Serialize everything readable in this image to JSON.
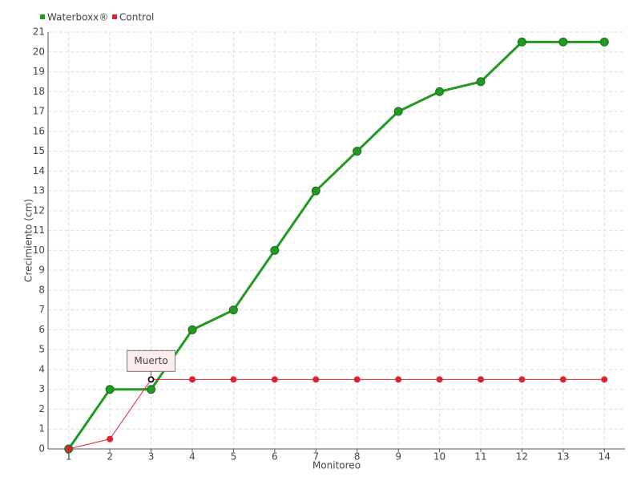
{
  "chart_data": {
    "type": "line",
    "x_label": "Monitoreo",
    "y_label": "Crecimiento (cm)",
    "x": [
      1,
      2,
      3,
      4,
      5,
      6,
      7,
      8,
      9,
      10,
      11,
      12,
      13,
      14
    ],
    "xlim": [
      0.5,
      14.5
    ],
    "xticks": [
      1,
      2,
      3,
      4,
      5,
      6,
      7,
      8,
      9,
      10,
      11,
      12,
      13,
      14
    ],
    "ylim": [
      0,
      21
    ],
    "yticks": [
      0,
      1,
      2,
      3,
      4,
      5,
      6,
      7,
      8,
      9,
      10,
      11,
      12,
      13,
      14,
      15,
      16,
      17,
      18,
      19,
      20,
      21
    ],
    "grid": true,
    "legend": "top-left",
    "series": [
      {
        "name": "Waterboxx®",
        "color": "#229922",
        "values": [
          0,
          3,
          3,
          6,
          7,
          10,
          13,
          15,
          17,
          18,
          18.5,
          20.5,
          20.5,
          20.5
        ]
      },
      {
        "name": "Control",
        "color": "#dd2233",
        "values": [
          0,
          0.5,
          3.5,
          3.5,
          3.5,
          3.5,
          3.5,
          3.5,
          3.5,
          3.5,
          3.5,
          3.5,
          3.5,
          3.5
        ]
      }
    ],
    "annotations": [
      {
        "text": "Muerto",
        "x": 3,
        "y": 3.5
      }
    ]
  }
}
